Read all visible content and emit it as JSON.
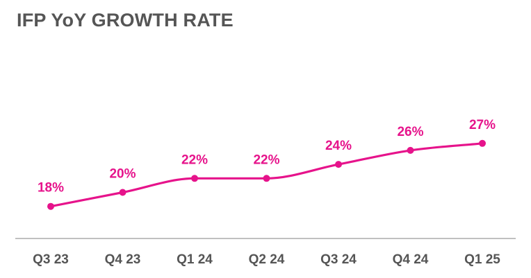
{
  "chart_data": {
    "type": "line",
    "title": "IFP YoY GROWTH RATE",
    "categories": [
      "Q3 23",
      "Q4 23",
      "Q1 24",
      "Q2 24",
      "Q3 24",
      "Q4 24",
      "Q1 25"
    ],
    "series": [
      {
        "values": [
          18,
          20,
          22,
          22,
          24,
          26,
          27
        ],
        "labels": [
          "18%",
          "20%",
          "22%",
          "22%",
          "24%",
          "26%",
          "27%"
        ],
        "color": "#E6138B"
      }
    ],
    "xlabel": "",
    "ylabel": "",
    "grid": false,
    "smooth": true
  },
  "colors": {
    "axis": "#9a9a9a",
    "text": "#555555",
    "accent": "#E6138B"
  }
}
